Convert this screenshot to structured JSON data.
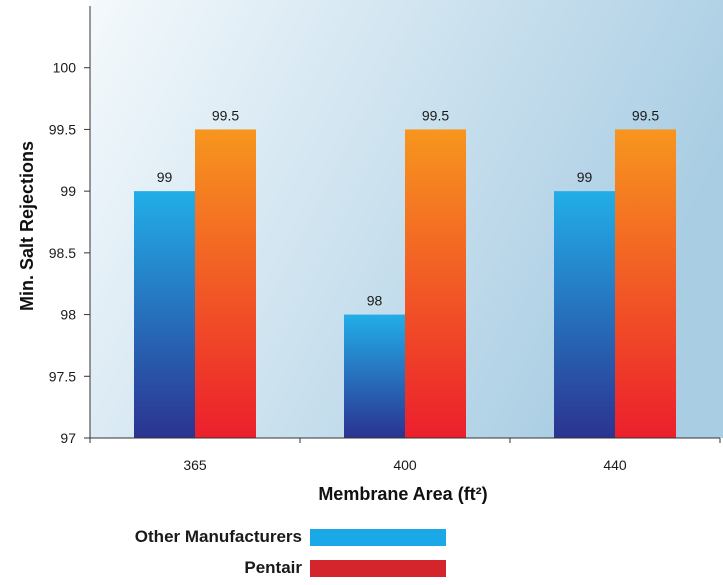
{
  "chart_data": {
    "type": "bar",
    "categories": [
      "365",
      "400",
      "440"
    ],
    "series": [
      {
        "name": "Other Manufacturers",
        "values": [
          99,
          98,
          99
        ],
        "data_labels": [
          "99",
          "98",
          "99"
        ],
        "legend_color": "#1aa9e6",
        "gradient_top": "#22aee8",
        "gradient_bottom": "#2b3390"
      },
      {
        "name": "Pentair",
        "values": [
          99.5,
          99.5,
          99.5
        ],
        "data_labels": [
          "99.5",
          "99.5",
          "99.5"
        ],
        "legend_color": "#d4242c",
        "gradient_top": "#f7961e",
        "gradient_bottom": "#ec1f2c"
      }
    ],
    "xlabel": "Membrane Area (ft²)",
    "ylabel": "Min. Salt Rejections",
    "ylim": [
      97,
      100.5
    ],
    "yticks": [
      "97",
      "97.5",
      "98",
      "98.5",
      "99",
      "99.5",
      "100"
    ],
    "legend_position": "bottom",
    "grid": false
  },
  "colors": {
    "plot_bg_light": "#f4f9fc",
    "plot_bg_dark": "#a9cde3",
    "axis": "#333333"
  }
}
